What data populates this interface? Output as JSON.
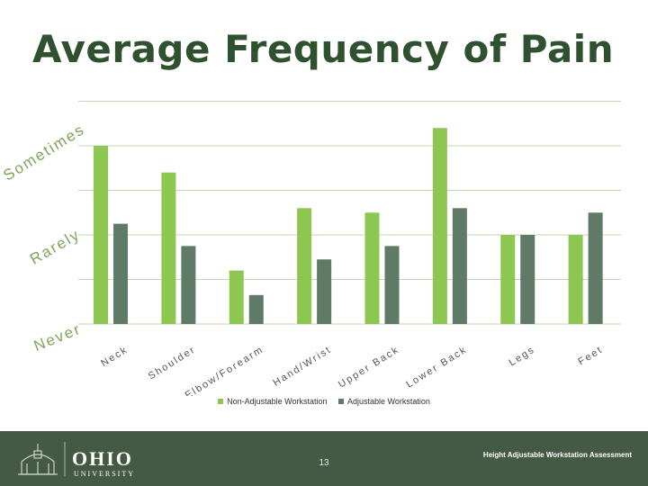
{
  "title": "Average Frequency of Pain",
  "chart_data": {
    "type": "bar",
    "categories": [
      "Neck",
      "Shoulder",
      "Elbow/Forearm",
      "Hand/Wrist",
      "Upper Back",
      "Lower Back",
      "Legs",
      "Feet"
    ],
    "y_tick_labels": [
      "Never",
      "Rarely",
      "Sometimes"
    ],
    "ylim": [
      0,
      5
    ],
    "grid": true,
    "legend_position": "bottom",
    "series": [
      {
        "name": "Non-Adjustable Workstation",
        "color": "#8dc751",
        "values": [
          4.0,
          3.4,
          1.2,
          2.6,
          2.5,
          4.4,
          2.0,
          2.0
        ]
      },
      {
        "name": "Adjustable Workstation",
        "color": "#5f7a66",
        "values": [
          2.25,
          1.75,
          0.65,
          1.45,
          1.75,
          2.6,
          2.0,
          2.5
        ]
      }
    ]
  },
  "footer": {
    "logo_text": "OHIO",
    "logo_subtext": "UNIVERSITY",
    "page_number": "13",
    "caption": "Height Adjustable Workstation Assessment"
  }
}
